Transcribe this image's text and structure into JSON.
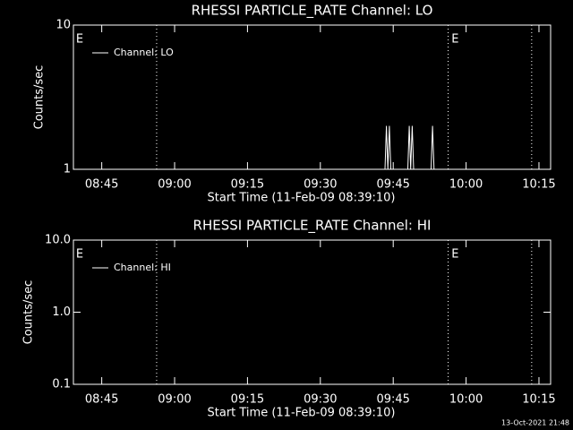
{
  "chart_data": [
    {
      "type": "line",
      "title": "RHESSI PARTICLE_RATE Channel: LO",
      "ylabel": "Counts/sec",
      "xlabel": "Start Time (11-Feb-09 08:39:10)",
      "log_y": true,
      "ylim": [
        1,
        10
      ],
      "yticks": [
        1,
        10
      ],
      "xlim": [
        519.17,
        617.4
      ],
      "xticks": [
        {
          "value": 525,
          "label": "08:45"
        },
        {
          "value": 540,
          "label": "09:00"
        },
        {
          "value": 555,
          "label": "09:15"
        },
        {
          "value": 570,
          "label": "09:30"
        },
        {
          "value": 585,
          "label": "09:45"
        },
        {
          "value": 600,
          "label": "10:00"
        },
        {
          "value": 615,
          "label": "10:15"
        }
      ],
      "vlines": [
        536.3,
        596.3,
        613.5
      ],
      "annotations": [
        {
          "text": "E",
          "x": 519.7
        },
        {
          "text": "E",
          "x": 597
        }
      ],
      "series": [
        {
          "name": "Channel: LO",
          "color": "#ffffff",
          "x": [
            583.3,
            583.6,
            583.9,
            584.2,
            584.5,
            588.0,
            588.3,
            588.6,
            588.9,
            589.2,
            592.8,
            593.1,
            593.4
          ],
          "values": [
            1,
            2,
            1,
            2,
            1,
            1,
            2,
            1,
            2,
            1,
            1,
            2,
            1
          ]
        }
      ]
    },
    {
      "type": "line",
      "title": "RHESSI PARTICLE_RATE Channel: HI",
      "ylabel": "Counts/sec",
      "xlabel": "Start Time (11-Feb-09 08:39:10)",
      "log_y": true,
      "ylim": [
        0.1,
        10
      ],
      "yticks": [
        0.1,
        {
          "value": 1,
          "label": "1.0"
        },
        {
          "value": 10,
          "label": "10.0"
        }
      ],
      "xlim": [
        519.17,
        617.4
      ],
      "xticks": [
        {
          "value": 525,
          "label": "08:45"
        },
        {
          "value": 540,
          "label": "09:00"
        },
        {
          "value": 555,
          "label": "09:15"
        },
        {
          "value": 570,
          "label": "09:30"
        },
        {
          "value": 585,
          "label": "09:45"
        },
        {
          "value": 600,
          "label": "10:00"
        },
        {
          "value": 615,
          "label": "10:15"
        }
      ],
      "vlines": [
        536.3,
        596.3,
        613.5
      ],
      "annotations": [
        {
          "text": "E",
          "x": 519.7
        },
        {
          "text": "E",
          "x": 597
        }
      ],
      "series": [
        {
          "name": "Channel: HI",
          "color": "#ffffff",
          "x": [],
          "values": []
        }
      ]
    }
  ],
  "footer": "13-Oct-2021 21:48"
}
